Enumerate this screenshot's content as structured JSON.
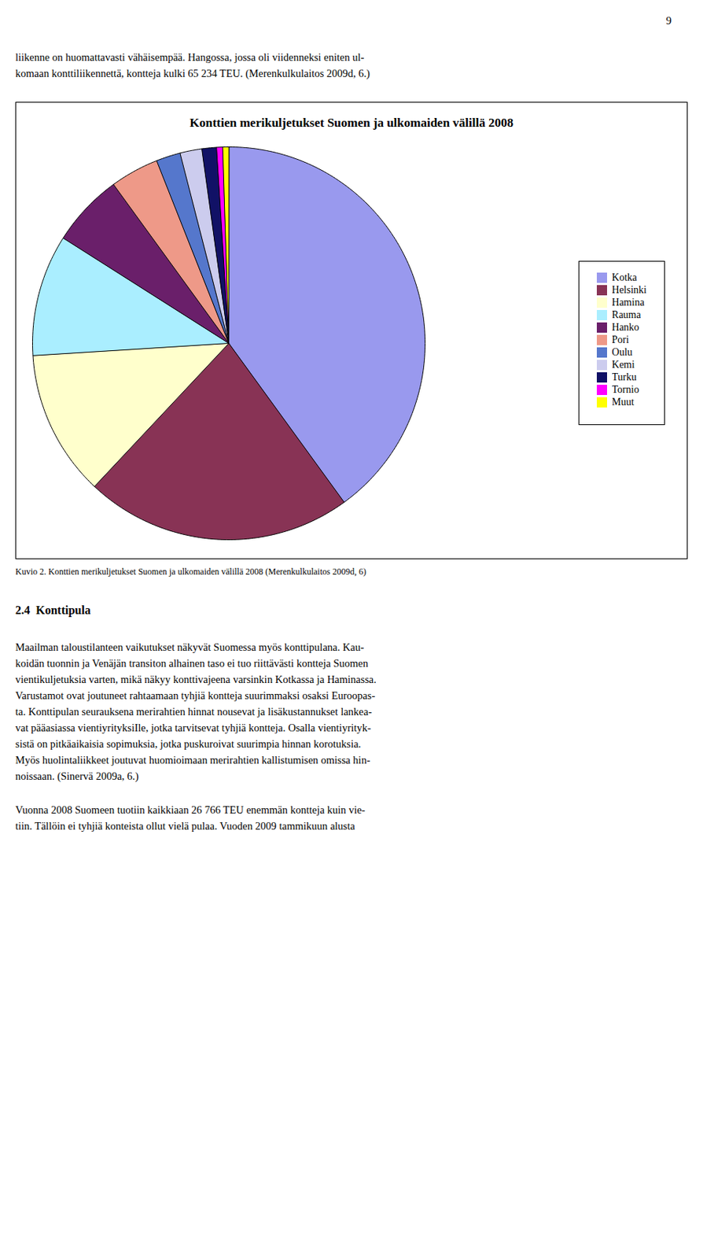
{
  "chart_data": {
    "type": "pie",
    "title": "Konttien merikuljetukset Suomen ja ulkomaiden välillä 2008",
    "categories": [
      "Kotka",
      "Helsinki",
      "Hamina",
      "Rauma",
      "Hanko",
      "Pori",
      "Oulu",
      "Kemi",
      "Turku",
      "Tornio",
      "Muut"
    ],
    "values": [
      40.0,
      22.0,
      12.0,
      10.0,
      6.0,
      4.0,
      2.0,
      1.8,
      1.2,
      0.5,
      0.5
    ],
    "colors": [
      "#9999ee",
      "#883355",
      "#ffffcc",
      "#aaeeff",
      "#6a1f6a",
      "#ee9988",
      "#5577cc",
      "#ccccee",
      "#111166",
      "#ff00ff",
      "#ffff00"
    ],
    "legend": "upper right"
  },
  "page_number": "9",
  "text_lines": [
    "liikenne on huomattavasti vähäisempää. Hangossa, jossa oli viidenneksi eniten ul-",
    "komaan konttiliikennettä, kontteja kulki 65 234 TEU. (Merenkulkulaitos 2009d, 6.)"
  ],
  "caption": "Kuvio 2. Konttien merikuljetukset Suomen ja ulkomaiden välillä 2008 (Merenkulkulaitos 2009d, 6)",
  "section_heading": "2.4  Konttipula",
  "body_lines": [
    "Maailman taloustilanteen vaikutukset näkyvät Suomessa myös konttipulana. Kau-",
    "koidän tuonnin ja Venäjän transiton alhainen taso ei tuo riittävästi kontteja Suomen",
    "vientikuljetuksia varten, mikä näkyy konttivajeena varsinkin Kotkassa ja Haminassa.",
    "Varustamot ovat joutuneet rahtaamaan tyhjiä kontteja suurimmaksi osaksi Euroopas-",
    "ta. Konttipulan seurauksena merirahtien hinnat nousevat ja lisäkustannukset lankea-",
    "vat pääasiassa vientiyrityksiIle, jotka tarvitsevat tyhjiä kontteja. Osalla vientiyrityk-",
    "sistä on pitkäaikaisia sopimuksia, jotka puskuroivat suurimpia hinnan korotuksia.",
    "Myös huolintaliikkeet joutuvat huomioimaan merirahtien kallistumisen omissa hin-",
    "noissaan. (Sinervä 2009a, 6.)"
  ],
  "footer_lines": [
    "Vuonna 2008 Suomeen tuotiin kaikkiaan 26 766 TEU enemmän kontteja kuin vie-",
    "tiin. Tällöin ei tyhjiä konteista ollut vielä pulaa. Vuoden 2009 tammikuun alusta"
  ]
}
